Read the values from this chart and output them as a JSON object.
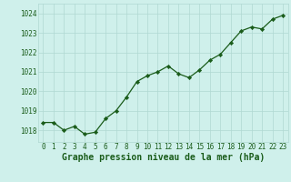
{
  "x": [
    0,
    1,
    2,
    3,
    4,
    5,
    6,
    7,
    8,
    9,
    10,
    11,
    12,
    13,
    14,
    15,
    16,
    17,
    18,
    19,
    20,
    21,
    22,
    23
  ],
  "y": [
    1018.4,
    1018.4,
    1018.0,
    1018.2,
    1017.8,
    1017.9,
    1018.6,
    1019.0,
    1019.7,
    1020.5,
    1020.8,
    1021.0,
    1021.3,
    1020.9,
    1020.7,
    1021.1,
    1021.6,
    1021.9,
    1022.5,
    1023.1,
    1023.3,
    1023.2,
    1023.7,
    1023.9
  ],
  "line_color": "#1a5c1a",
  "marker_color": "#1a5c1a",
  "bg_color": "#cff0eb",
  "grid_color": "#b0d8d2",
  "title": "Graphe pression niveau de la mer (hPa)",
  "ylim_min": 1017.4,
  "ylim_max": 1024.5,
  "yticks": [
    1018,
    1019,
    1020,
    1021,
    1022,
    1023,
    1024
  ],
  "xticks": [
    0,
    1,
    2,
    3,
    4,
    5,
    6,
    7,
    8,
    9,
    10,
    11,
    12,
    13,
    14,
    15,
    16,
    17,
    18,
    19,
    20,
    21,
    22,
    23
  ],
  "tick_fontsize": 5.5,
  "title_fontsize": 7.0,
  "linewidth": 0.9,
  "markersize": 2.2
}
